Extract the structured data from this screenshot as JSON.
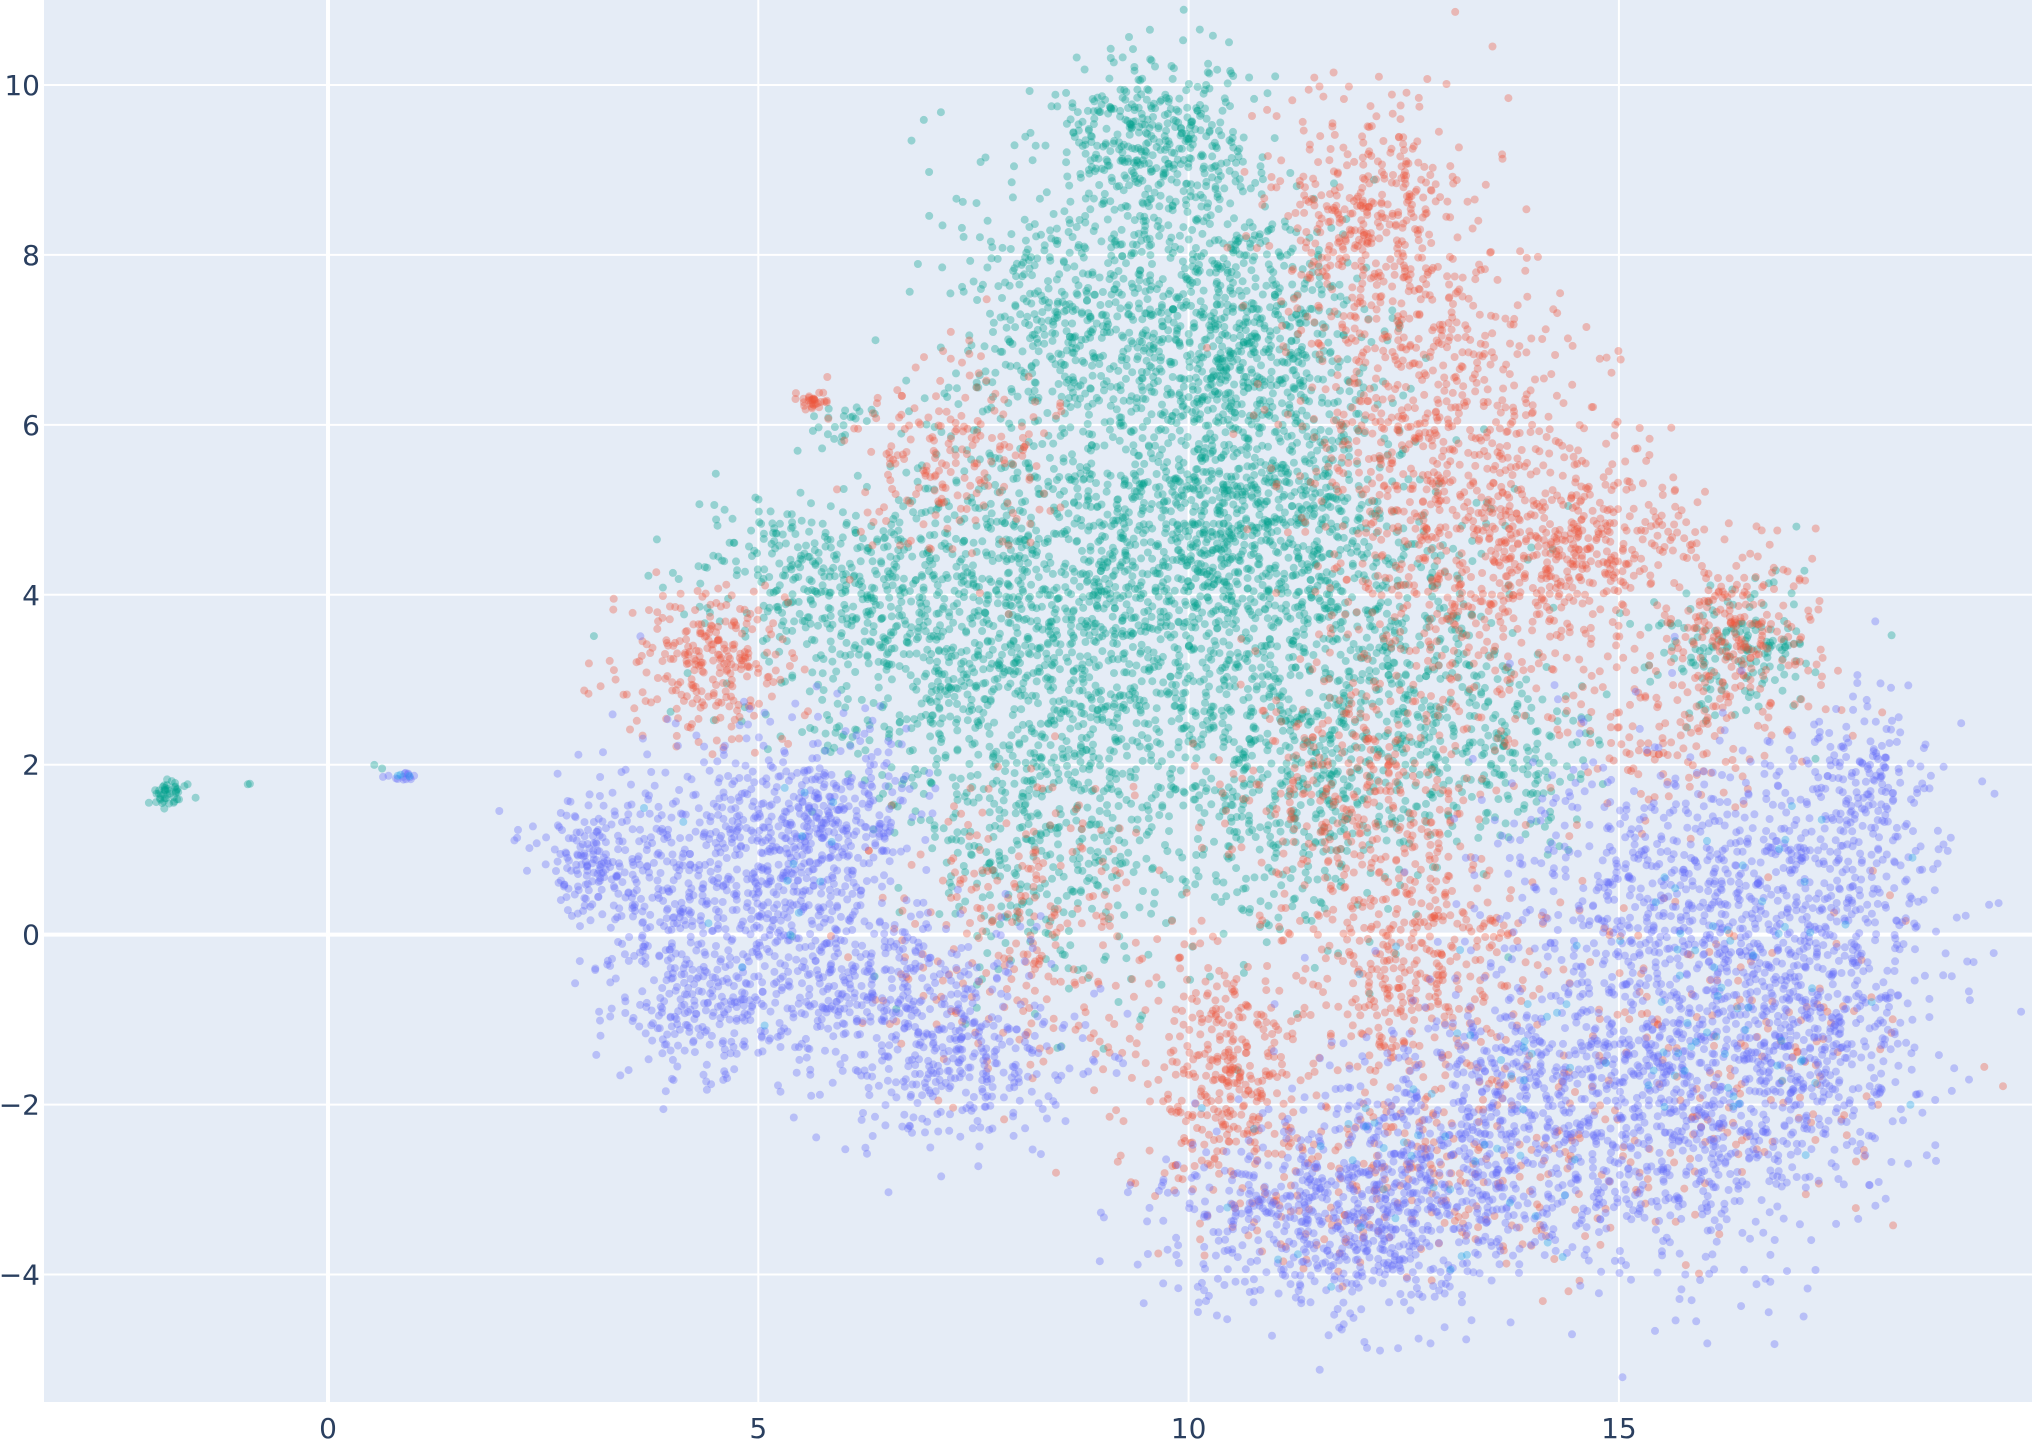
{
  "chart_data": {
    "type": "scatter",
    "title": "",
    "xlabel": "",
    "ylabel": "",
    "xlim": [
      -3.3,
      19.8
    ],
    "ylim": [
      -5.5,
      11.0
    ],
    "grid": true,
    "legend": "none",
    "background": "#E5ECF6",
    "grid_color": "#FFFFFF",
    "x_ticks": [
      {
        "value": 0,
        "label": "0"
      },
      {
        "value": 5,
        "label": "5"
      },
      {
        "value": 10,
        "label": "10"
      },
      {
        "value": 15,
        "label": "15"
      }
    ],
    "y_ticks": [
      {
        "value": -4,
        "label": "−4"
      },
      {
        "value": -2,
        "label": "−2"
      },
      {
        "value": 0,
        "label": "0"
      },
      {
        "value": 2,
        "label": "2"
      },
      {
        "value": 4,
        "label": "4"
      },
      {
        "value": 6,
        "label": "6"
      },
      {
        "value": 8,
        "label": "8"
      },
      {
        "value": 10,
        "label": "10"
      }
    ],
    "marker_opacity": 0.35,
    "series": [
      {
        "color": "#00A08B",
        "clusters": [
          {
            "cx": 9.6,
            "cy": 9.3,
            "sx": 0.6,
            "sy": 0.5,
            "n": 420
          },
          {
            "cx": 10.5,
            "cy": 7.2,
            "sx": 0.7,
            "sy": 0.8,
            "n": 600
          },
          {
            "cx": 8.6,
            "cy": 7.3,
            "sx": 0.7,
            "sy": 0.8,
            "n": 420
          },
          {
            "cx": 9.4,
            "cy": 4.2,
            "sx": 1.2,
            "sy": 1.2,
            "n": 1300
          },
          {
            "cx": 10.8,
            "cy": 5.3,
            "sx": 0.8,
            "sy": 1.0,
            "n": 600
          },
          {
            "cx": 7.2,
            "cy": 3.4,
            "sx": 1.1,
            "sy": 0.9,
            "n": 650
          },
          {
            "cx": 5.6,
            "cy": 4.3,
            "sx": 0.8,
            "sy": 0.5,
            "n": 260
          },
          {
            "cx": 8.5,
            "cy": 1.2,
            "sx": 0.8,
            "sy": 0.9,
            "n": 420
          },
          {
            "cx": 11.2,
            "cy": 1.8,
            "sx": 0.9,
            "sy": 1.0,
            "n": 520
          },
          {
            "cx": 12.3,
            "cy": 3.5,
            "sx": 0.8,
            "sy": 1.0,
            "n": 380
          },
          {
            "cx": 16.3,
            "cy": 3.4,
            "sx": 0.5,
            "sy": 0.4,
            "n": 170
          },
          {
            "cx": 13.5,
            "cy": 2.2,
            "sx": 0.7,
            "sy": 0.6,
            "n": 200
          },
          {
            "cx": -1.85,
            "cy": 1.68,
            "sx": 0.1,
            "sy": 0.08,
            "n": 45
          },
          {
            "cx": 5.95,
            "cy": 6.05,
            "sx": 0.2,
            "sy": 0.12,
            "n": 22
          },
          {
            "cx": -0.95,
            "cy": 1.78,
            "sx": 0.02,
            "sy": 0.02,
            "n": 2
          },
          {
            "cx": 0.6,
            "cy": 1.98,
            "sx": 0.02,
            "sy": 0.02,
            "n": 2
          }
        ]
      },
      {
        "color": "#EF553B",
        "clusters": [
          {
            "cx": 12.1,
            "cy": 8.4,
            "sx": 0.6,
            "sy": 0.8,
            "n": 420
          },
          {
            "cx": 12.8,
            "cy": 6.2,
            "sx": 0.9,
            "sy": 0.9,
            "n": 480
          },
          {
            "cx": 13.6,
            "cy": 4.3,
            "sx": 1.0,
            "sy": 0.8,
            "n": 540
          },
          {
            "cx": 14.7,
            "cy": 4.7,
            "sx": 0.6,
            "sy": 0.5,
            "n": 200
          },
          {
            "cx": 16.4,
            "cy": 3.6,
            "sx": 0.45,
            "sy": 0.45,
            "n": 200
          },
          {
            "cx": 4.4,
            "cy": 3.2,
            "sx": 0.5,
            "sy": 0.5,
            "n": 260
          },
          {
            "cx": 7.2,
            "cy": 5.6,
            "sx": 0.6,
            "sy": 0.6,
            "n": 200
          },
          {
            "cx": 10.4,
            "cy": -1.6,
            "sx": 0.5,
            "sy": 0.7,
            "n": 320
          },
          {
            "cx": 12.6,
            "cy": -0.3,
            "sx": 0.7,
            "sy": 0.8,
            "n": 420
          },
          {
            "cx": 12.0,
            "cy": 1.8,
            "sx": 0.8,
            "sy": 0.8,
            "n": 320
          },
          {
            "cx": 8.0,
            "cy": 0.0,
            "sx": 0.8,
            "sy": 0.9,
            "n": 260
          },
          {
            "cx": 15.6,
            "cy": 2.4,
            "sx": 0.8,
            "sy": 0.5,
            "n": 150
          },
          {
            "cx": 12.5,
            "cy": -2.8,
            "sx": 1.3,
            "sy": 0.6,
            "n": 260
          },
          {
            "cx": 16.0,
            "cy": -1.5,
            "sx": 1.2,
            "sy": 1.0,
            "n": 200
          },
          {
            "cx": 5.65,
            "cy": 6.28,
            "sx": 0.08,
            "sy": 0.06,
            "n": 30
          }
        ]
      },
      {
        "color": "#636EFA",
        "clusters": [
          {
            "cx": 5.7,
            "cy": 1.3,
            "sx": 0.6,
            "sy": 0.6,
            "n": 450
          },
          {
            "cx": 4.3,
            "cy": 0.7,
            "sx": 0.7,
            "sy": 0.8,
            "n": 420
          },
          {
            "cx": 3.05,
            "cy": 0.85,
            "sx": 0.3,
            "sy": 0.3,
            "n": 140
          },
          {
            "cx": 4.3,
            "cy": -0.8,
            "sx": 0.5,
            "sy": 0.45,
            "n": 200
          },
          {
            "cx": 6.3,
            "cy": -0.6,
            "sx": 0.8,
            "sy": 0.6,
            "n": 420
          },
          {
            "cx": 7.4,
            "cy": -1.5,
            "sx": 0.7,
            "sy": 0.5,
            "n": 280
          },
          {
            "cx": 11.8,
            "cy": -3.4,
            "sx": 1.0,
            "sy": 0.55,
            "n": 650
          },
          {
            "cx": 13.4,
            "cy": -2.2,
            "sx": 1.0,
            "sy": 0.8,
            "n": 600
          },
          {
            "cx": 15.8,
            "cy": -2.0,
            "sx": 1.0,
            "sy": 1.0,
            "n": 750
          },
          {
            "cx": 17.2,
            "cy": 0.3,
            "sx": 0.8,
            "sy": 1.0,
            "n": 650
          },
          {
            "cx": 15.2,
            "cy": 0.5,
            "sx": 0.9,
            "sy": 0.9,
            "n": 450
          },
          {
            "cx": 17.4,
            "cy": -1.6,
            "sx": 0.6,
            "sy": 0.6,
            "n": 200
          },
          {
            "cx": 17.8,
            "cy": 1.8,
            "sx": 0.4,
            "sy": 0.5,
            "n": 120
          },
          {
            "cx": 0.85,
            "cy": 1.86,
            "sx": 0.12,
            "sy": 0.03,
            "n": 14
          }
        ]
      },
      {
        "color": "#19A4E8",
        "clusters": [
          {
            "cx": 13.0,
            "cy": -2.5,
            "sx": 1.2,
            "sy": 0.9,
            "n": 50
          },
          {
            "cx": 15.8,
            "cy": -1.2,
            "sx": 1.2,
            "sy": 1.0,
            "n": 45
          },
          {
            "cx": 17.0,
            "cy": 0.0,
            "sx": 0.8,
            "sy": 0.8,
            "n": 20
          },
          {
            "cx": 5.5,
            "cy": 0.5,
            "sx": 0.8,
            "sy": 0.8,
            "n": 15
          },
          {
            "cx": 0.85,
            "cy": 1.87,
            "sx": 0.08,
            "sy": 0.02,
            "n": 3
          }
        ]
      }
    ]
  }
}
